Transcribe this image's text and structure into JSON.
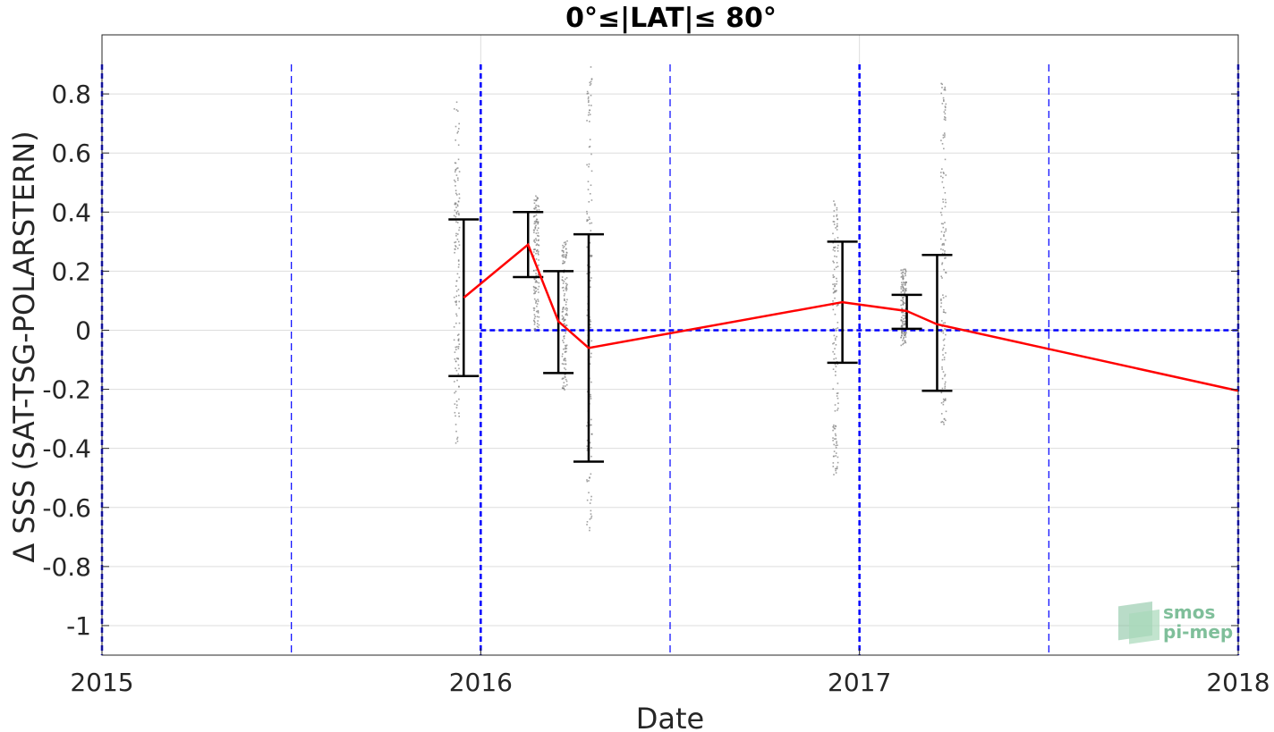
{
  "chart_data": {
    "type": "line",
    "title": "0°≤|LAT|≤ 80°",
    "xlabel": "Date",
    "ylabel": "Δ SSS (SAT-TSG-POLARSTERN)",
    "xlim": [
      2015.0,
      2018.0
    ],
    "ylim": [
      -1.1,
      1.0
    ],
    "x_ticks": [
      {
        "value": 2015,
        "label": "2015"
      },
      {
        "value": 2016,
        "label": "2016"
      },
      {
        "value": 2017,
        "label": "2017"
      },
      {
        "value": 2018,
        "label": "2018"
      }
    ],
    "y_ticks": [
      {
        "value": 0.8,
        "label": "0.8"
      },
      {
        "value": 0.6,
        "label": "0.6"
      },
      {
        "value": 0.4,
        "label": "0.4"
      },
      {
        "value": 0.2,
        "label": "0.2"
      },
      {
        "value": 0,
        "label": "0"
      },
      {
        "value": -0.2,
        "label": "-0.2"
      },
      {
        "value": -0.4,
        "label": "-0.4"
      },
      {
        "value": -0.6,
        "label": "-0.6"
      },
      {
        "value": -0.8,
        "label": "-0.8"
      },
      {
        "value": -1,
        "label": "-1"
      }
    ],
    "grid": true,
    "colors": {
      "mean_line": "#ff0000",
      "error_bars": "#000000",
      "scatter": "#808080",
      "reference_lines": "#0000ff",
      "grid": "#dddddd"
    },
    "series": [
      {
        "type": "line",
        "x": [
          2015.955,
          2016.125,
          2016.205,
          2016.285,
          2016.955,
          2017.125,
          2017.205,
          2018.0
        ],
        "y": [
          0.11,
          0.29,
          0.03,
          -0.06,
          0.095,
          0.065,
          0.02,
          -0.205
        ]
      }
    ],
    "error_bars": [
      {
        "x": 2015.955,
        "low": -0.155,
        "high": 0.375
      },
      {
        "x": 2016.125,
        "low": 0.18,
        "high": 0.4
      },
      {
        "x": 2016.205,
        "low": -0.145,
        "high": 0.2
      },
      {
        "x": 2016.285,
        "low": -0.445,
        "high": 0.325
      },
      {
        "x": 2016.955,
        "low": -0.11,
        "high": 0.3
      },
      {
        "x": 2017.125,
        "low": 0.005,
        "high": 0.12
      },
      {
        "x": 2017.205,
        "low": -0.205,
        "high": 0.255
      }
    ],
    "scatter_clusters": [
      {
        "x": 2015.935,
        "ymin": -0.39,
        "ymax": 0.78
      },
      {
        "x": 2016.145,
        "ymin": 0.0,
        "ymax": 0.46
      },
      {
        "x": 2016.22,
        "ymin": -0.2,
        "ymax": 0.31
      },
      {
        "x": 2016.285,
        "ymin": -0.68,
        "ymax": 0.9
      },
      {
        "x": 2016.935,
        "ymin": -0.5,
        "ymax": 0.44
      },
      {
        "x": 2017.115,
        "ymin": -0.05,
        "ymax": 0.21
      },
      {
        "x": 2017.22,
        "ymin": -0.33,
        "ymax": 0.85
      }
    ],
    "vertical_lines": [
      {
        "x": 2015.0,
        "style": "heavy"
      },
      {
        "x": 2015.5,
        "style": "light"
      },
      {
        "x": 2016.0,
        "style": "heavy"
      },
      {
        "x": 2016.5,
        "style": "light"
      },
      {
        "x": 2017.0,
        "style": "heavy"
      },
      {
        "x": 2017.5,
        "style": "light"
      },
      {
        "x": 2018.0,
        "style": "heavy"
      }
    ],
    "horizontal_reference": {
      "y": 0,
      "x_start": 2016.0,
      "x_end": 2018.0
    }
  },
  "logo": {
    "line1": "smos",
    "line2": "pi-mep"
  }
}
